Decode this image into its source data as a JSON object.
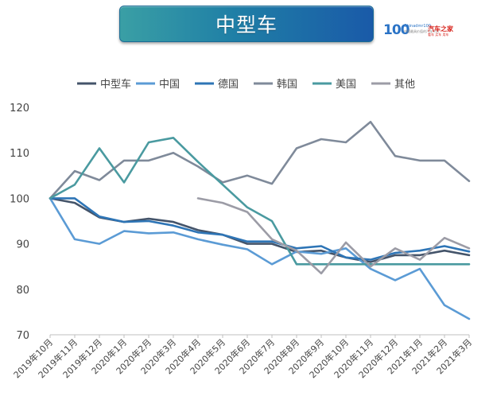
{
  "header": {
    "title": "中型车"
  },
  "logo": {
    "mark": "100",
    "english": "Chinadmr100",
    "sub": "中国最具价值的汽车平台",
    "brand": "汽车之家",
    "brand_sub": "看车 买车 用车"
  },
  "chart_data": {
    "type": "line",
    "title": "",
    "xlabel": "",
    "ylabel": "",
    "ylim": [
      70,
      120
    ],
    "yticks": [
      70,
      80,
      90,
      100,
      110,
      120
    ],
    "grid": false,
    "legend_position": "top",
    "categories": [
      "2019年10月",
      "2019年11月",
      "2019年12月",
      "2020年1月",
      "2020年2月",
      "2020年3月",
      "2020年4月",
      "2020年5月",
      "2020年6月",
      "2020年7月",
      "2020年8月",
      "2020年9月",
      "2020年10月",
      "2020年11月",
      "2020年12月",
      "2021年1月",
      "2021年2月",
      "2021年3月"
    ],
    "series": [
      {
        "name": "中型车",
        "color": "#44546a",
        "values": [
          100,
          99,
          95.8,
          94.8,
          95.5,
          94.8,
          93,
          92,
          90,
          90,
          88.2,
          88.5,
          87,
          86,
          87.5,
          87.5,
          88.5,
          87.5
        ]
      },
      {
        "name": "中国",
        "color": "#5b9bd5",
        "values": [
          100,
          91,
          90,
          92.8,
          92.3,
          92.5,
          91,
          89.8,
          88.8,
          85.5,
          88.3,
          87.8,
          89,
          84.5,
          82,
          84.5,
          76.5,
          73.5
        ]
      },
      {
        "name": "德国",
        "color": "#2e75b6",
        "values": [
          100,
          100,
          96,
          94.8,
          95,
          94,
          92.5,
          92,
          90.5,
          90.5,
          89,
          89.5,
          87,
          86.5,
          88,
          88.5,
          89.5,
          88.3
        ]
      },
      {
        "name": "韩国",
        "color": "#7f8a9a",
        "values": [
          100,
          106,
          104,
          108.3,
          108.3,
          110,
          107,
          103.5,
          105,
          103.2,
          111,
          113,
          112.3,
          116.8,
          109.3,
          108.3,
          108.3,
          103.8
        ]
      },
      {
        "name": "美国",
        "color": "#4a9aa0",
        "values": [
          100,
          103,
          111,
          103.5,
          112.3,
          113.3,
          108,
          103,
          98,
          95,
          85.5,
          85.5,
          85.5,
          85.5,
          85.5,
          85.5,
          85.5,
          85.5
        ]
      },
      {
        "name": "其他",
        "color": "#9c9ca6",
        "values": [
          null,
          null,
          null,
          null,
          null,
          null,
          100,
          99,
          97,
          91,
          88.5,
          83.5,
          90.3,
          85,
          89,
          86.5,
          91.3,
          89
        ]
      }
    ]
  }
}
